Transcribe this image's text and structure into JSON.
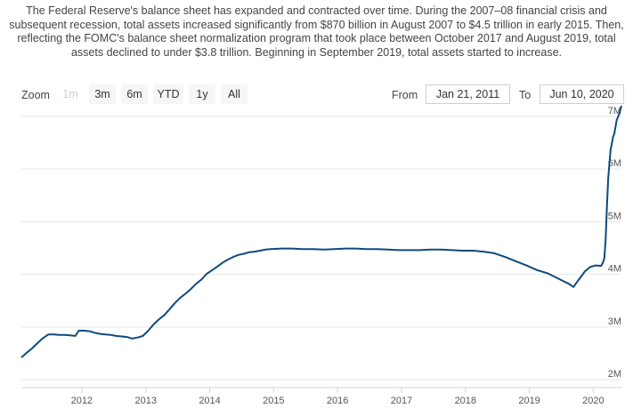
{
  "description": "The Federal Reserve's balance sheet has expanded and contracted over time. During the 2007–08 financial crisis and subsequent recession, total assets increased significantly from $870 billion in August 2007 to $4.5 trillion in early 2015. Then, reflecting the FOMC's balance sheet normalization program that took place between October 2017 and August 2019, total assets declined to under $3.8 trillion. Beginning in September 2019, total assets started to increase.",
  "toolbar": {
    "zoom_label": "Zoom",
    "buttons": [
      "1m",
      "3m",
      "6m",
      "YTD",
      "1y",
      "All"
    ],
    "from_label": "From",
    "from_value": "Jan 21, 2011",
    "to_label": "To",
    "to_value": "Jun 10, 2020"
  },
  "colors": {
    "line": "#0e4a7e",
    "grid": "#e6e6e6",
    "axis": "#ccd6eb"
  },
  "chart_data": {
    "type": "line",
    "title": "",
    "xlabel": "",
    "ylabel": "",
    "xlim": [
      "2011-01-21",
      "2020-06-10"
    ],
    "ylim": [
      1.85,
      7.15
    ],
    "x_tick_labels": [
      "2012",
      "2013",
      "2014",
      "2015",
      "2016",
      "2017",
      "2018",
      "2019",
      "2020"
    ],
    "y_tick_labels": [
      "2M",
      "3M",
      "4M",
      "5M",
      "6M",
      "7M"
    ],
    "grid": true,
    "series": [
      {
        "x": [
          "2011-01-21",
          "2011-02-20",
          "2011-03-25",
          "2011-04-25",
          "2011-05-25",
          "2011-06-25",
          "2011-07-25",
          "2011-08-25",
          "2011-09-25",
          "2011-10-25",
          "2011-11-25",
          "2011-12-15",
          "2012-01-10",
          "2012-02-15",
          "2012-03-15",
          "2012-04-15",
          "2012-05-15",
          "2012-06-15",
          "2012-07-15",
          "2012-08-15",
          "2012-09-15",
          "2012-10-15",
          "2012-11-15",
          "2012-12-15",
          "2013-01-15",
          "2013-02-15",
          "2013-03-15",
          "2013-04-15",
          "2013-05-15",
          "2013-06-15",
          "2013-07-15",
          "2013-08-15",
          "2013-09-15",
          "2013-10-15",
          "2013-11-15",
          "2013-12-15",
          "2014-01-15",
          "2014-02-15",
          "2014-03-15",
          "2014-04-15",
          "2014-05-15",
          "2014-06-15",
          "2014-07-15",
          "2014-08-15",
          "2014-09-15",
          "2014-10-15",
          "2014-11-15",
          "2014-12-15",
          "2015-02-15",
          "2015-04-15",
          "2015-06-15",
          "2015-08-15",
          "2015-10-15",
          "2015-12-15",
          "2016-02-15",
          "2016-04-15",
          "2016-06-15",
          "2016-08-15",
          "2016-10-15",
          "2016-12-15",
          "2017-02-15",
          "2017-04-15",
          "2017-06-15",
          "2017-08-15",
          "2017-10-15",
          "2017-12-15",
          "2018-02-15",
          "2018-04-15",
          "2018-06-15",
          "2018-08-15",
          "2018-10-15",
          "2018-12-15",
          "2019-02-15",
          "2019-04-15",
          "2019-06-15",
          "2019-08-15",
          "2019-09-10",
          "2019-10-15",
          "2019-11-15",
          "2019-12-15",
          "2020-01-15",
          "2020-02-15",
          "2020-02-28",
          "2020-03-05",
          "2020-03-12",
          "2020-03-19",
          "2020-03-26",
          "2020-04-02",
          "2020-04-09",
          "2020-04-16",
          "2020-04-23",
          "2020-04-30",
          "2020-05-14",
          "2020-05-28",
          "2020-06-10"
        ],
        "y": [
          2.42,
          2.51,
          2.6,
          2.7,
          2.79,
          2.86,
          2.86,
          2.85,
          2.85,
          2.84,
          2.83,
          2.93,
          2.93,
          2.92,
          2.89,
          2.87,
          2.86,
          2.85,
          2.83,
          2.82,
          2.81,
          2.78,
          2.8,
          2.83,
          2.93,
          3.05,
          3.14,
          3.22,
          3.33,
          3.45,
          3.55,
          3.63,
          3.72,
          3.82,
          3.9,
          4.01,
          4.08,
          4.15,
          4.22,
          4.28,
          4.33,
          4.37,
          4.39,
          4.42,
          4.43,
          4.45,
          4.47,
          4.48,
          4.49,
          4.49,
          4.48,
          4.48,
          4.47,
          4.48,
          4.49,
          4.49,
          4.48,
          4.48,
          4.47,
          4.46,
          4.46,
          4.46,
          4.47,
          4.47,
          4.46,
          4.45,
          4.45,
          4.43,
          4.4,
          4.33,
          4.25,
          4.17,
          4.08,
          4.02,
          3.92,
          3.82,
          3.76,
          3.92,
          4.06,
          4.14,
          4.17,
          4.16,
          4.24,
          4.32,
          4.67,
          5.28,
          5.81,
          6.08,
          6.36,
          6.48,
          6.61,
          6.66,
          6.93,
          7.04,
          7.2
        ]
      }
    ]
  }
}
